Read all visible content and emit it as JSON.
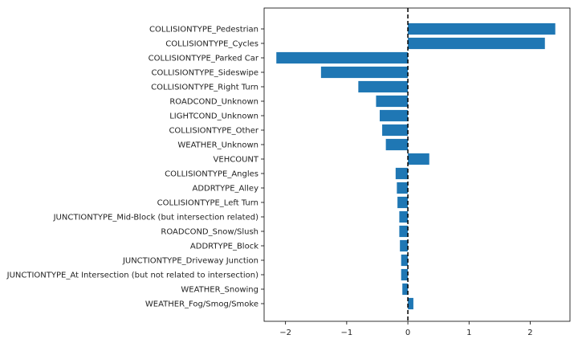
{
  "chart_data": {
    "type": "bar",
    "orientation": "horizontal",
    "title": "",
    "xlabel": "",
    "ylabel": "",
    "xlim": [
      -2.35,
      2.65
    ],
    "xticks": [
      -2,
      -1,
      0,
      1,
      2
    ],
    "xtick_labels": [
      "−2",
      "−1",
      "0",
      "1",
      "2"
    ],
    "reference_line": {
      "x": 0,
      "style": "dashed",
      "color": "#000000"
    },
    "grid": false,
    "bar_color": "#1f77b4",
    "categories": [
      "COLLISIONTYPE_Pedestrian",
      "COLLISIONTYPE_Cycles",
      "COLLISIONTYPE_Parked Car",
      "COLLISIONTYPE_Sideswipe",
      "COLLISIONTYPE_Right Turn",
      "ROADCOND_Unknown",
      "LIGHTCOND_Unknown",
      "COLLISIONTYPE_Other",
      "WEATHER_Unknown",
      "VEHCOUNT",
      "COLLISIONTYPE_Angles",
      "ADDRTYPE_Alley",
      "COLLISIONTYPE_Left Turn",
      "JUNCTIONTYPE_Mid-Block (but intersection related)",
      "ROADCOND_Snow/Slush",
      "ADDRTYPE_Block",
      "JUNCTIONTYPE_Driveway Junction",
      "JUNCTIONTYPE_At Intersection (but not related to intersection)",
      "WEATHER_Snowing",
      "WEATHER_Fog/Smog/Smoke"
    ],
    "values": [
      2.41,
      2.24,
      -2.15,
      -1.42,
      -0.81,
      -0.52,
      -0.46,
      -0.42,
      -0.36,
      0.35,
      -0.2,
      -0.18,
      -0.17,
      -0.14,
      -0.14,
      -0.13,
      -0.11,
      -0.11,
      -0.09,
      0.09
    ]
  }
}
